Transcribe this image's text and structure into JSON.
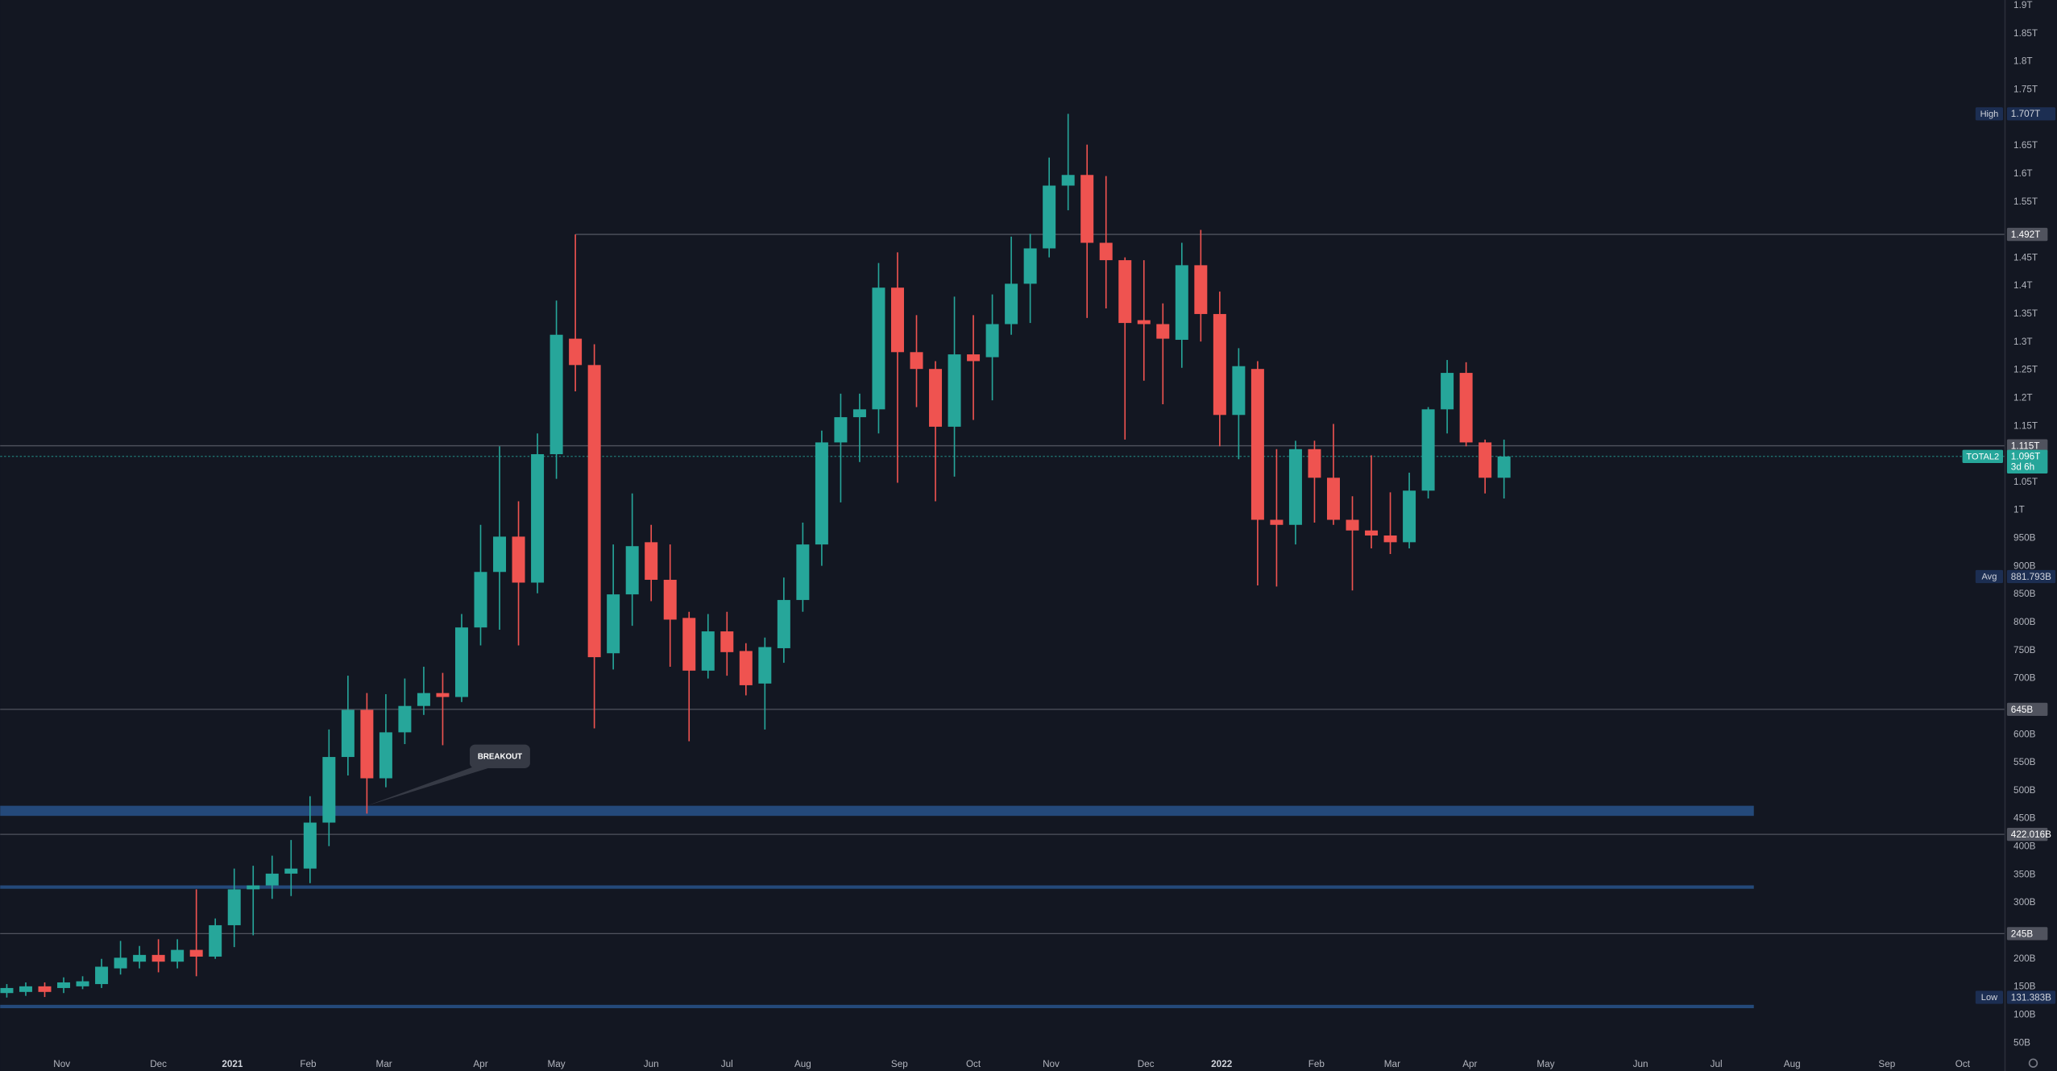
{
  "chart_data": {
    "type": "candlestick",
    "up_color": "#26a69a",
    "down_color": "#ef5350",
    "grid": false,
    "xlim": [
      -0.35,
      105.4
    ],
    "ylim": [
      0,
      1910
    ],
    "xticks": [
      {
        "value": 2.9,
        "label": "Nov"
      },
      {
        "value": 8.0,
        "label": "Dec"
      },
      {
        "value": 11.9,
        "label": "2021"
      },
      {
        "value": 15.9,
        "label": "Feb"
      },
      {
        "value": 19.9,
        "label": "Mar"
      },
      {
        "value": 25.0,
        "label": "Apr"
      },
      {
        "value": 29.0,
        "label": "May"
      },
      {
        "value": 34.0,
        "label": "Jun"
      },
      {
        "value": 38.0,
        "label": "Jul"
      },
      {
        "value": 42.0,
        "label": "Aug"
      },
      {
        "value": 47.1,
        "label": "Sep"
      },
      {
        "value": 51.0,
        "label": "Oct"
      },
      {
        "value": 55.1,
        "label": "Nov"
      },
      {
        "value": 60.1,
        "label": "Dec"
      },
      {
        "value": 64.1,
        "label": "2022"
      },
      {
        "value": 69.1,
        "label": "Feb"
      },
      {
        "value": 73.1,
        "label": "Mar"
      },
      {
        "value": 77.2,
        "label": "Apr"
      },
      {
        "value": 81.2,
        "label": "May"
      },
      {
        "value": 86.2,
        "label": "Jun"
      },
      {
        "value": 90.2,
        "label": "Jul"
      },
      {
        "value": 94.2,
        "label": "Aug"
      },
      {
        "value": 99.2,
        "label": "Sep"
      },
      {
        "value": 103.2,
        "label": "Oct"
      }
    ],
    "yticks": [
      {
        "value": 1900,
        "label": "1.9T"
      },
      {
        "value": 1850,
        "label": "1.85T"
      },
      {
        "value": 1800,
        "label": "1.8T"
      },
      {
        "value": 1750,
        "label": "1.75T"
      },
      {
        "value": 1650,
        "label": "1.65T"
      },
      {
        "value": 1600,
        "label": "1.6T"
      },
      {
        "value": 1550,
        "label": "1.55T"
      },
      {
        "value": 1450,
        "label": "1.45T"
      },
      {
        "value": 1400,
        "label": "1.4T"
      },
      {
        "value": 1350,
        "label": "1.35T"
      },
      {
        "value": 1300,
        "label": "1.3T"
      },
      {
        "value": 1250,
        "label": "1.25T"
      },
      {
        "value": 1200,
        "label": "1.2T"
      },
      {
        "value": 1150,
        "label": "1.15T"
      },
      {
        "value": 1050,
        "label": "1.05T"
      },
      {
        "value": 1000,
        "label": "1T"
      },
      {
        "value": 950,
        "label": "950B"
      },
      {
        "value": 900,
        "label": "900B"
      },
      {
        "value": 850,
        "label": "850B"
      },
      {
        "value": 800,
        "label": "800B"
      },
      {
        "value": 750,
        "label": "750B"
      },
      {
        "value": 700,
        "label": "700B"
      },
      {
        "value": 600,
        "label": "600B"
      },
      {
        "value": 550,
        "label": "550B"
      },
      {
        "value": 500,
        "label": "500B"
      },
      {
        "value": 450,
        "label": "450B"
      },
      {
        "value": 400,
        "label": "400B"
      },
      {
        "value": 350,
        "label": "350B"
      },
      {
        "value": 300,
        "label": "300B"
      },
      {
        "value": 200,
        "label": "200B"
      },
      {
        "value": 150,
        "label": "150B"
      },
      {
        "value": 100,
        "label": "100B"
      },
      {
        "value": 50,
        "label": "50B"
      }
    ],
    "open": [
      139,
      141,
      151,
      148,
      151,
      155,
      183,
      195,
      207,
      195,
      216,
      204,
      260,
      324,
      331,
      352,
      361,
      443,
      560,
      644,
      522,
      604,
      651,
      674,
      667,
      791,
      890,
      953,
      871,
      1100,
      1306,
      1259,
      745,
      850,
      943,
      876,
      808,
      714,
      784,
      749,
      691,
      754,
      840,
      939,
      1121,
      1166,
      1180,
      1397,
      1282,
      1252,
      1149,
      1278,
      1273,
      1332,
      1404,
      1467,
      1579,
      1598,
      1477,
      1446,
      1339,
      1332,
      1304,
      1437,
      1350,
      1170,
      1252,
      983,
      974,
      1109,
      1058,
      983,
      964,
      955,
      943,
      1035,
      1180,
      1245,
      1121,
      1058
    ],
    "high": [
      155,
      158,
      158,
      167,
      169,
      200,
      232,
      223,
      235,
      235,
      324,
      272,
      361,
      366,
      384,
      412,
      490,
      609,
      705,
      674,
      672,
      700,
      721,
      710,
      815,
      974,
      1114,
      1016,
      1137,
      1374,
      1492,
      1296,
      939,
      1030,
      974,
      939,
      819,
      815,
      819,
      763,
      773,
      880,
      978,
      1142,
      1208,
      1208,
      1441,
      1460,
      1348,
      1266,
      1381,
      1348,
      1385,
      1488,
      1493,
      1629,
      1707,
      1652,
      1596,
      1451,
      1446,
      1369,
      1477,
      1500,
      1390,
      1289,
      1266,
      1109,
      1124,
      1124,
      1154,
      1025,
      1098,
      1032,
      1067,
      1184,
      1268,
      1264,
      1126,
      1126
    ],
    "low": [
      131,
      134,
      132,
      139,
      146,
      148,
      172,
      183,
      176,
      183,
      169,
      200,
      221,
      242,
      307,
      312,
      335,
      401,
      527,
      459,
      506,
      583,
      635,
      581,
      658,
      759,
      787,
      759,
      852,
      1056,
      1212,
      611,
      716,
      794,
      838,
      721,
      588,
      700,
      705,
      670,
      609,
      728,
      819,
      901,
      1014,
      1086,
      1137,
      1049,
      1184,
      1016,
      1060,
      1161,
      1196,
      1313,
      1334,
      1451,
      1535,
      1343,
      1360,
      1126,
      1231,
      1189,
      1254,
      1301,
      1114,
      1091,
      866,
      864,
      939,
      978,
      974,
      857,
      932,
      922,
      932,
      1021,
      1137,
      1114,
      1030,
      1021
    ],
    "close": [
      148,
      151,
      141,
      158,
      160,
      186,
      202,
      207,
      195,
      216,
      204,
      260,
      324,
      331,
      352,
      361,
      443,
      560,
      644,
      522,
      604,
      651,
      674,
      667,
      791,
      890,
      953,
      871,
      1100,
      1313,
      1259,
      738,
      850,
      936,
      876,
      805,
      714,
      784,
      747,
      688,
      756,
      840,
      939,
      1121,
      1166,
      1180,
      1397,
      1282,
      1252,
      1149,
      1278,
      1266,
      1332,
      1404,
      1467,
      1579,
      1598,
      1477,
      1446,
      1334,
      1332,
      1306,
      1437,
      1350,
      1170,
      1257,
      983,
      974,
      1109,
      1058,
      983,
      964,
      955,
      943,
      1035,
      1180,
      1245,
      1121,
      1058,
      1096
    ],
    "levels": [
      {
        "value": 1492,
        "label": "1.492T"
      },
      {
        "value": 1115,
        "label": "1.115T"
      },
      {
        "value": 645,
        "label": "645B"
      },
      {
        "value": 422.016,
        "label": "422.016B"
      },
      {
        "value": 245,
        "label": "245B"
      }
    ],
    "zones": [
      {
        "low": 455,
        "high": 473
      },
      {
        "low": 325,
        "high": 331
      },
      {
        "low": 112,
        "high": 118
      }
    ],
    "zone_color": "#24497a",
    "price_labels": [
      {
        "name": "High",
        "value": 1707,
        "label": "1.707T"
      },
      {
        "name": "Avg",
        "value": 881.793,
        "label": "881.793B"
      },
      {
        "name": "Low",
        "value": 131.383,
        "label": "131.383B"
      }
    ],
    "current": {
      "name": "TOTAL2",
      "value": 1096,
      "label": "1.096T",
      "countdown": "3d 6h"
    },
    "annotation": {
      "text": "BREAKOUT"
    }
  }
}
